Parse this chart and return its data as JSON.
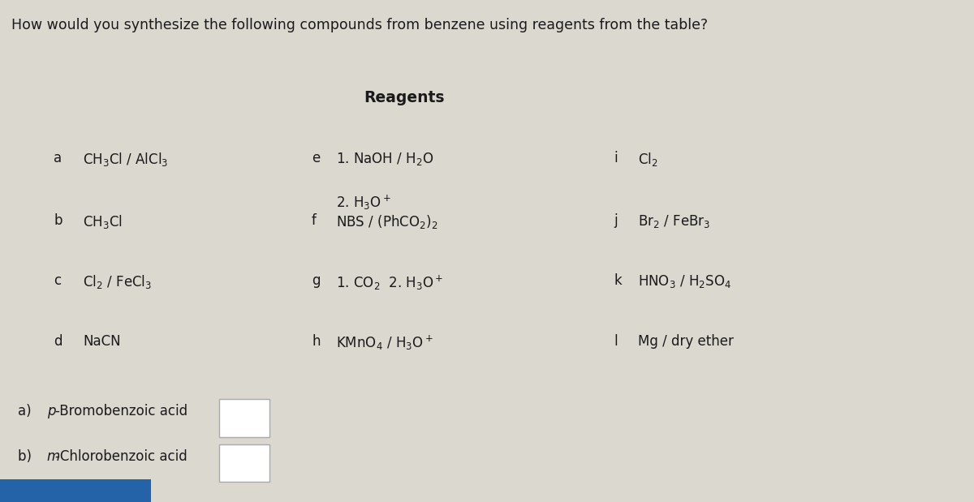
{
  "title": "How would you synthesize the following compounds from benzene using reagents from the table?",
  "reagents_header": "Reagents",
  "col1": [
    {
      "label": "a",
      "text": "CH$_3$Cl / AlCl$_3$"
    },
    {
      "label": "b",
      "text": "CH$_3$Cl"
    },
    {
      "label": "c",
      "text": "Cl$_2$ / FeCl$_3$"
    },
    {
      "label": "d",
      "text": "NaCN"
    }
  ],
  "col2": [
    {
      "label": "e",
      "text_line1": "1. NaOH / H$_2$O",
      "text_line2": "2. H$_3$O$^+$"
    },
    {
      "label": "f",
      "text_line1": "NBS / (PhCO$_2$)$_2$",
      "text_line2": ""
    },
    {
      "label": "g",
      "text_line1": "1. CO$_2$  2. H$_3$O$^+$",
      "text_line2": ""
    },
    {
      "label": "h",
      "text_line1": "KMnO$_4$ / H$_3$O$^+$",
      "text_line2": ""
    }
  ],
  "col3": [
    {
      "label": "i",
      "text": "Cl$_2$"
    },
    {
      "label": "j",
      "text": "Br$_2$ / FeBr$_3$"
    },
    {
      "label": "k",
      "text": "HNO$_3$ / H$_2$SO$_4$"
    },
    {
      "label": "l",
      "text": "Mg / dry ether"
    }
  ],
  "q_a_prefix": "a) ",
  "q_a_italic": "p",
  "q_a_text": "-Bromobenzoic acid",
  "q_b_prefix": "b) ",
  "q_b_italic": "m",
  "q_b_text": "-Chlorobenzoic acid",
  "bg_color": "#dbd8d0",
  "text_color": "#1a1a1a",
  "box_color": "#ffffff",
  "box_edge_color": "#aaaaaa",
  "blue_color": "#2563a8",
  "title_fontsize": 12.5,
  "label_fontsize": 12,
  "reagent_fontsize": 12,
  "header_fontsize": 13.5
}
